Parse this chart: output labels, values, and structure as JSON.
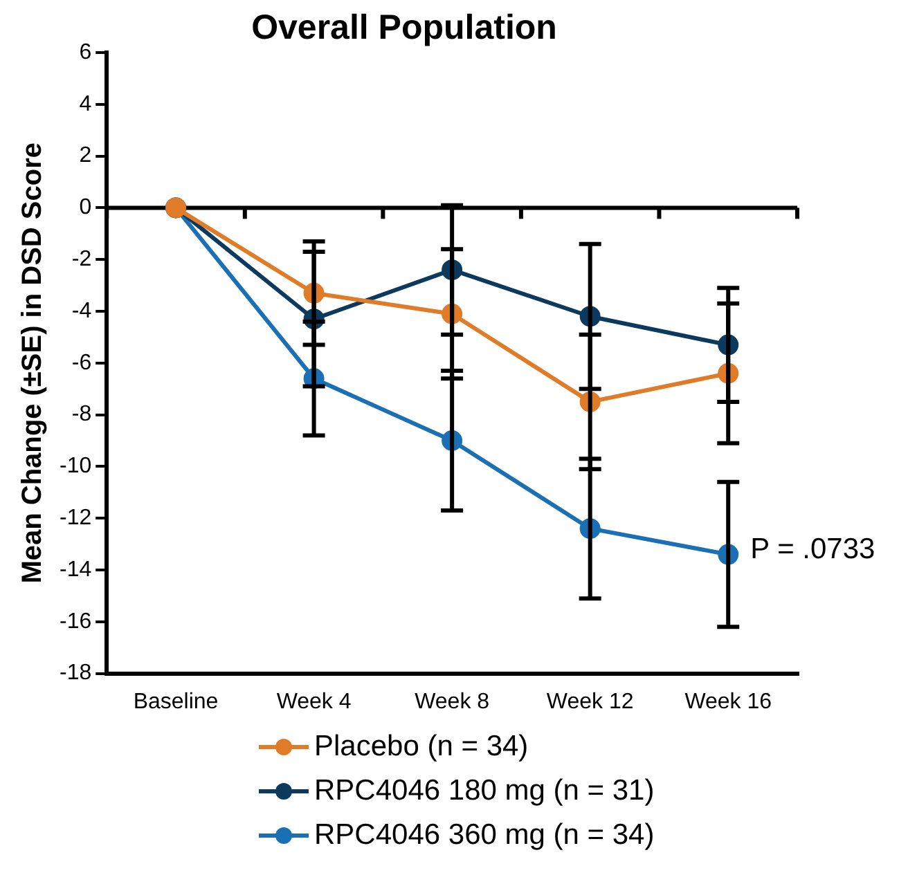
{
  "chart_data": {
    "type": "line",
    "title": "Overall Population",
    "ylabel": "Mean Change (±SE) in DSD Score",
    "categories": [
      "Baseline",
      "Week 4",
      "Week 8",
      "Week 12",
      "Week 16"
    ],
    "series": [
      {
        "name": "Placebo (n = 34)",
        "color": "#e07b28",
        "values": [
          0,
          -3.3,
          -4.1,
          -7.5,
          -6.4
        ],
        "errors": [
          null,
          2.0,
          2.5,
          2.6,
          2.7
        ]
      },
      {
        "name": "RPC4046 180 mg (n = 31)",
        "color": "#0b3a5e",
        "values": [
          0,
          -4.3,
          -2.4,
          -4.2,
          -5.3
        ],
        "errors": [
          null,
          2.6,
          2.5,
          2.8,
          2.2
        ]
      },
      {
        "name": "RPC4046 360 mg (n = 34)",
        "color": "#1a6fb5",
        "values": [
          0,
          -6.6,
          -9.0,
          -12.4,
          -13.4
        ],
        "errors": [
          null,
          2.2,
          2.7,
          2.7,
          2.8
        ]
      }
    ],
    "ylim": [
      -18,
      6
    ],
    "yticks": [
      -18,
      -16,
      -14,
      -12,
      -10,
      -8,
      -6,
      -4,
      -2,
      0,
      2,
      4,
      6
    ],
    "ref_lines": [
      {
        "axis": "y",
        "value": 0,
        "color": "#000000"
      }
    ],
    "annotations": [
      {
        "text": "P = .0733",
        "x": "Week 16",
        "y": -13.4
      }
    ],
    "marker": "circle",
    "line_style": "solid",
    "grid": false,
    "legend": "bottom"
  }
}
